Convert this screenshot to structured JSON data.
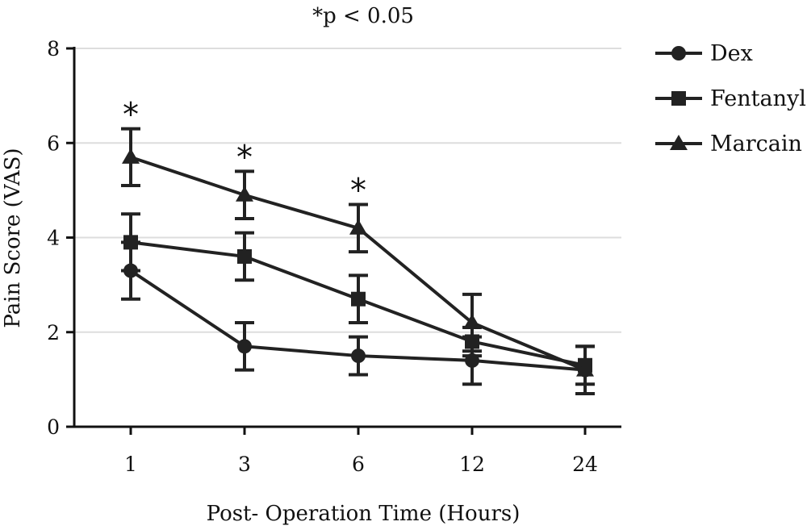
{
  "chart_data": {
    "type": "line",
    "title": "*p < 0.05",
    "xlabel": "Post- Operation Time (Hours)",
    "ylabel": "Pain Score (VAS)",
    "categories": [
      "1",
      "3",
      "6",
      "12",
      "24"
    ],
    "ylim": [
      0,
      8
    ],
    "yticks": [
      "0",
      "2",
      "4",
      "6",
      "8"
    ],
    "grid": true,
    "legend_position": "top-right",
    "series": [
      {
        "name": "Dex",
        "marker": "circle",
        "values": [
          3.3,
          1.7,
          1.5,
          1.4,
          1.2
        ],
        "error": [
          0.6,
          0.5,
          0.4,
          0.5,
          0.5
        ]
      },
      {
        "name": "Fentanyl",
        "marker": "square",
        "values": [
          3.9,
          3.6,
          2.7,
          1.8,
          1.3
        ],
        "error": [
          0.6,
          0.5,
          0.5,
          0.3,
          0.4
        ]
      },
      {
        "name": "Marcain",
        "marker": "triangle",
        "values": [
          5.7,
          4.9,
          4.2,
          2.2,
          1.2
        ],
        "error": [
          0.6,
          0.5,
          0.5,
          0.6,
          0.5
        ]
      }
    ],
    "annotations": [
      {
        "text": "*",
        "category": "1"
      },
      {
        "text": "*",
        "category": "3"
      },
      {
        "text": "*",
        "category": "6"
      }
    ],
    "colors": {
      "line": "#222222",
      "grid": "#dddddd",
      "axis": "#111111"
    }
  }
}
